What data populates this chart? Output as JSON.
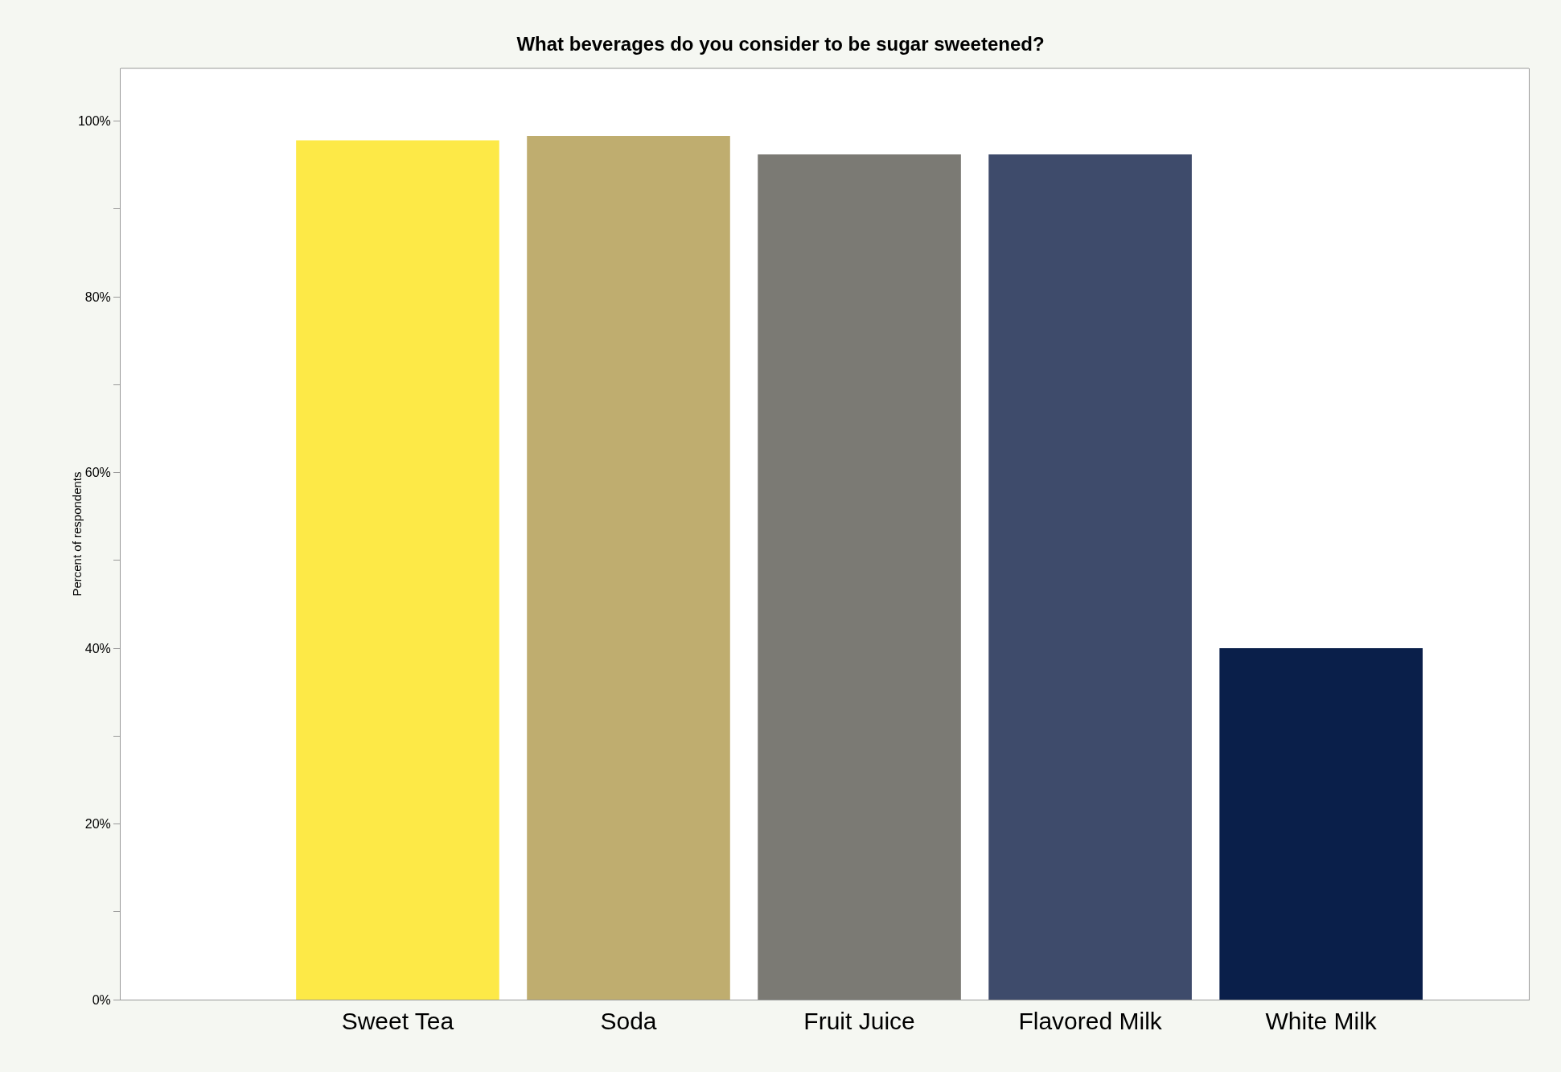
{
  "chart_data": {
    "type": "bar",
    "title": "What beverages do you consider to be sugar sweetened?",
    "ylabel": "Percent of respondents",
    "categories": [
      "Sweet Tea",
      "Soda",
      "Fruit Juice",
      "Flavored Milk",
      "White Milk"
    ],
    "values": [
      97.8,
      98.3,
      96.2,
      96.2,
      40.0
    ],
    "colors": [
      "#fde947",
      "#bfad6f",
      "#7b7a74",
      "#3e4b6b",
      "#0a1f4a"
    ],
    "ylim": [
      0,
      106
    ],
    "yticks": [
      {
        "value": 0,
        "label": "0%"
      },
      {
        "value": 10,
        "label": null
      },
      {
        "value": 20,
        "label": "20%"
      },
      {
        "value": 30,
        "label": null
      },
      {
        "value": 40,
        "label": "40%"
      },
      {
        "value": 50,
        "label": null
      },
      {
        "value": 60,
        "label": "60%"
      },
      {
        "value": 70,
        "label": null
      },
      {
        "value": 80,
        "label": "80%"
      },
      {
        "value": 90,
        "label": null
      },
      {
        "value": 100,
        "label": "100%"
      }
    ],
    "grid": false
  }
}
